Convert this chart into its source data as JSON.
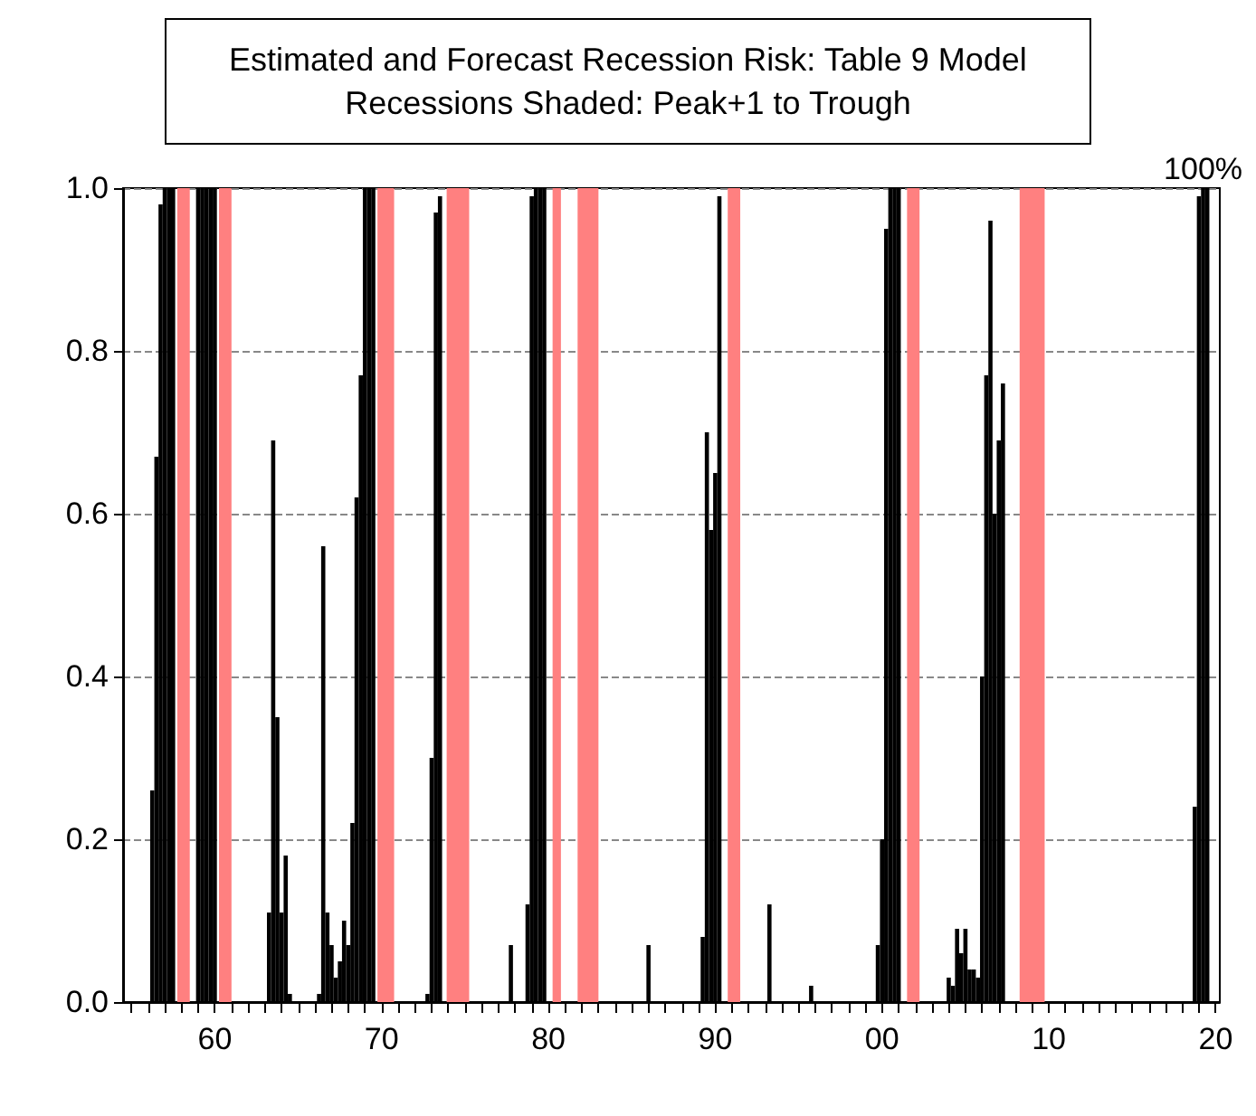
{
  "chart_data": {
    "type": "bar",
    "title": "Estimated and Forecast Recession Risk: Table 9 Model",
    "subtitle": "Recessions Shaded: Peak+1 to Trough",
    "x": [
      1956.25,
      1956.5,
      1956.75,
      1957,
      1957.25,
      1957.5,
      1959,
      1959.25,
      1959.5,
      1959.75,
      1960,
      1963.25,
      1963.5,
      1963.75,
      1964,
      1964.25,
      1964.5,
      1966.25,
      1966.5,
      1966.75,
      1967,
      1967.25,
      1967.5,
      1967.75,
      1968,
      1968.25,
      1968.5,
      1968.75,
      1969,
      1969.25,
      1969.5,
      1972.75,
      1973,
      1973.25,
      1973.5,
      1977.75,
      1978.75,
      1979,
      1979.25,
      1979.5,
      1979.75,
      1986,
      1989.25,
      1989.5,
      1989.75,
      1990,
      1990.25,
      1993.25,
      1995.75,
      1999.75,
      2000,
      2000.25,
      2000.5,
      2000.75,
      2001,
      2004,
      2004.25,
      2004.5,
      2004.75,
      2005,
      2005.25,
      2005.5,
      2005.75,
      2006,
      2006.25,
      2006.5,
      2006.75,
      2007,
      2007.25,
      2018.75,
      2019,
      2019.25,
      2019.5
    ],
    "values": [
      0.26,
      0.67,
      0.98,
      1,
      1,
      1,
      1,
      1,
      1,
      1,
      1,
      0.11,
      0.69,
      0.35,
      0.11,
      0.18,
      0.01,
      0.01,
      0.56,
      0.11,
      0.07,
      0.03,
      0.05,
      0.1,
      0.07,
      0.22,
      0.62,
      0.77,
      1,
      1,
      1,
      0.01,
      0.3,
      0.97,
      0.99,
      0.07,
      0.12,
      0.99,
      1,
      1,
      1,
      0.07,
      0.08,
      0.7,
      0.58,
      0.65,
      0.99,
      0.12,
      0.02,
      0.07,
      0.2,
      0.95,
      1,
      1,
      1,
      0.03,
      0.02,
      0.09,
      0.06,
      0.09,
      0.04,
      0.04,
      0.03,
      0.4,
      0.77,
      0.96,
      0.6,
      0.69,
      0.76,
      0.24,
      0.99,
      1,
      1
    ],
    "color": "#000000",
    "bands": [
      {
        "axis": "x",
        "from": 1957.75,
        "to": 1958.5,
        "color": "#ff8080"
      },
      {
        "axis": "x",
        "from": 1960.25,
        "to": 1961,
        "color": "#ff8080"
      },
      {
        "axis": "x",
        "from": 1969.75,
        "to": 1970.75,
        "color": "#ff8080"
      },
      {
        "axis": "x",
        "from": 1973.9,
        "to": 1975.25,
        "color": "#ff8080"
      },
      {
        "axis": "x",
        "from": 1980.25,
        "to": 1980.75,
        "color": "#ff8080"
      },
      {
        "axis": "x",
        "from": 1981.75,
        "to": 1983,
        "color": "#ff8080"
      },
      {
        "axis": "x",
        "from": 1990.75,
        "to": 1991.5,
        "color": "#ff8080"
      },
      {
        "axis": "x",
        "from": 2001.5,
        "to": 2002.25,
        "color": "#ff8080"
      },
      {
        "axis": "x",
        "from": 2008.25,
        "to": 2009.75,
        "color": "#ff8080"
      }
    ],
    "annotations": [
      {
        "text": "100%",
        "x": 2019.25,
        "y": 1.0
      }
    ],
    "xlim": [
      1954.5,
      2020.25
    ],
    "xticks": [
      {
        "value": 1955,
        "label": null
      },
      {
        "value": 1956,
        "label": null
      },
      {
        "value": 1957,
        "label": null
      },
      {
        "value": 1958,
        "label": null
      },
      {
        "value": 1959,
        "label": null
      },
      {
        "value": 1960,
        "label": "60"
      },
      {
        "value": 1961,
        "label": null
      },
      {
        "value": 1962,
        "label": null
      },
      {
        "value": 1963,
        "label": null
      },
      {
        "value": 1964,
        "label": null
      },
      {
        "value": 1965,
        "label": null
      },
      {
        "value": 1966,
        "label": null
      },
      {
        "value": 1967,
        "label": null
      },
      {
        "value": 1968,
        "label": null
      },
      {
        "value": 1969,
        "label": null
      },
      {
        "value": 1970,
        "label": "70"
      },
      {
        "value": 1971,
        "label": null
      },
      {
        "value": 1972,
        "label": null
      },
      {
        "value": 1973,
        "label": null
      },
      {
        "value": 1974,
        "label": null
      },
      {
        "value": 1975,
        "label": null
      },
      {
        "value": 1976,
        "label": null
      },
      {
        "value": 1977,
        "label": null
      },
      {
        "value": 1978,
        "label": null
      },
      {
        "value": 1979,
        "label": null
      },
      {
        "value": 1980,
        "label": "80"
      },
      {
        "value": 1981,
        "label": null
      },
      {
        "value": 1982,
        "label": null
      },
      {
        "value": 1983,
        "label": null
      },
      {
        "value": 1984,
        "label": null
      },
      {
        "value": 1985,
        "label": null
      },
      {
        "value": 1986,
        "label": null
      },
      {
        "value": 1987,
        "label": null
      },
      {
        "value": 1988,
        "label": null
      },
      {
        "value": 1989,
        "label": null
      },
      {
        "value": 1990,
        "label": "90"
      },
      {
        "value": 1991,
        "label": null
      },
      {
        "value": 1992,
        "label": null
      },
      {
        "value": 1993,
        "label": null
      },
      {
        "value": 1994,
        "label": null
      },
      {
        "value": 1995,
        "label": null
      },
      {
        "value": 1996,
        "label": null
      },
      {
        "value": 1997,
        "label": null
      },
      {
        "value": 1998,
        "label": null
      },
      {
        "value": 1999,
        "label": null
      },
      {
        "value": 2000,
        "label": "00"
      },
      {
        "value": 2001,
        "label": null
      },
      {
        "value": 2002,
        "label": null
      },
      {
        "value": 2003,
        "label": null
      },
      {
        "value": 2004,
        "label": null
      },
      {
        "value": 2005,
        "label": null
      },
      {
        "value": 2006,
        "label": null
      },
      {
        "value": 2007,
        "label": null
      },
      {
        "value": 2008,
        "label": null
      },
      {
        "value": 2009,
        "label": null
      },
      {
        "value": 2010,
        "label": "10"
      },
      {
        "value": 2011,
        "label": null
      },
      {
        "value": 2012,
        "label": null
      },
      {
        "value": 2013,
        "label": null
      },
      {
        "value": 2014,
        "label": null
      },
      {
        "value": 2015,
        "label": null
      },
      {
        "value": 2016,
        "label": null
      },
      {
        "value": 2017,
        "label": null
      },
      {
        "value": 2018,
        "label": null
      },
      {
        "value": 2019,
        "label": null
      },
      {
        "value": 2020,
        "label": "20"
      }
    ],
    "ylim": [
      0,
      1
    ],
    "yticks": [
      {
        "value": 0,
        "label": "0.0"
      },
      0.2,
      0.4,
      0.6,
      0.8,
      {
        "value": 1,
        "label": "1.0"
      }
    ],
    "grid": "y"
  }
}
